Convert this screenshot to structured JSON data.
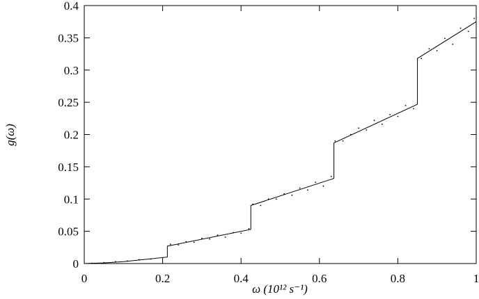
{
  "chart_data": {
    "type": "line",
    "x_label": "ω (10¹² s⁻¹)",
    "y_label": "g(ω)",
    "xlim": [
      0,
      1
    ],
    "ylim": [
      0,
      0.4
    ],
    "xticks": [
      0,
      0.2,
      0.4,
      0.6,
      0.8,
      1
    ],
    "yticks": [
      0,
      0.05,
      0.1,
      0.15,
      0.2,
      0.25,
      0.3,
      0.35,
      0.4
    ],
    "color": "#000000",
    "line": {
      "x": [
        0,
        0.05,
        0.1,
        0.15,
        0.212,
        0.212,
        0.425,
        0.425,
        0.637,
        0.637,
        0.85,
        0.85,
        1.0
      ],
      "values": [
        0,
        0.001,
        0.003,
        0.006,
        0.01,
        0.027,
        0.053,
        0.09,
        0.132,
        0.187,
        0.247,
        0.318,
        0.375
      ]
    },
    "scatter": {
      "x": [
        0.02,
        0.05,
        0.08,
        0.11,
        0.14,
        0.17,
        0.2,
        0.22,
        0.24,
        0.26,
        0.28,
        0.3,
        0.32,
        0.34,
        0.36,
        0.38,
        0.4,
        0.42,
        0.43,
        0.45,
        0.47,
        0.49,
        0.51,
        0.53,
        0.55,
        0.57,
        0.59,
        0.61,
        0.63,
        0.64,
        0.66,
        0.68,
        0.7,
        0.72,
        0.74,
        0.76,
        0.78,
        0.8,
        0.82,
        0.84,
        0.86,
        0.88,
        0.9,
        0.92,
        0.94,
        0.96,
        0.98,
        0.995
      ],
      "values": [
        0.0005,
        0.0015,
        0.003,
        0.004,
        0.006,
        0.007,
        0.009,
        0.03,
        0.029,
        0.034,
        0.033,
        0.039,
        0.038,
        0.044,
        0.041,
        0.048,
        0.047,
        0.054,
        0.092,
        0.09,
        0.1,
        0.1,
        0.108,
        0.106,
        0.117,
        0.114,
        0.126,
        0.12,
        0.135,
        0.19,
        0.19,
        0.2,
        0.21,
        0.207,
        0.222,
        0.216,
        0.231,
        0.228,
        0.245,
        0.24,
        0.318,
        0.333,
        0.33,
        0.349,
        0.34,
        0.365,
        0.36,
        0.38
      ]
    }
  }
}
